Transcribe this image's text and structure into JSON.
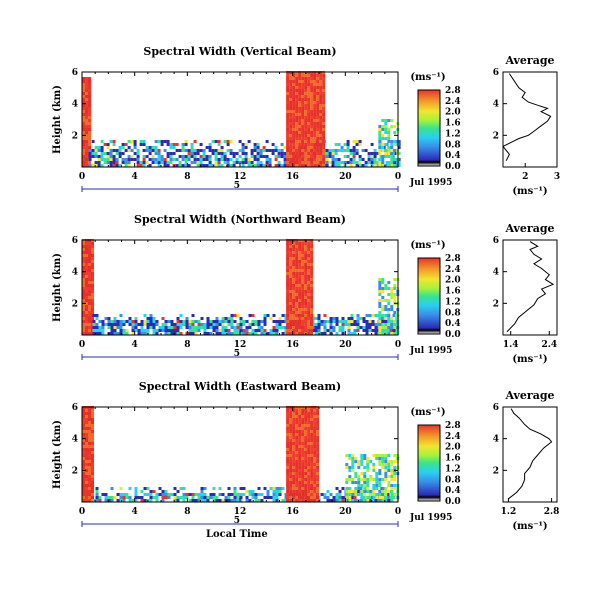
{
  "chart_data": [
    {
      "type": "heatmap",
      "title": "Spectral Width (Vertical Beam)",
      "ylabel": "Height (km)",
      "yticks": [
        "2",
        "4",
        "6"
      ],
      "ylim": [
        0,
        6
      ],
      "xticks": [
        "0",
        "4",
        "8",
        "12",
        "16",
        "20",
        "0"
      ],
      "xlim": [
        0,
        24
      ],
      "day_label": "5",
      "date_label": "Jul 1995",
      "colorbar": {
        "unit": "(ms⁻¹)",
        "ticks": [
          "0.0",
          "0.4",
          "0.8",
          "1.2",
          "1.6",
          "2.0",
          "2.4",
          "2.8"
        ]
      },
      "regions": [
        {
          "x": [
            0,
            0.5
          ],
          "y": [
            0,
            5.5
          ],
          "level": "high"
        },
        {
          "x": [
            0.5,
            24
          ],
          "y": [
            0,
            1.6
          ],
          "level": "low-mid"
        },
        {
          "x": [
            15.5,
            18.3
          ],
          "y": [
            0,
            6
          ],
          "level": "high"
        },
        {
          "x": [
            22.5,
            24
          ],
          "y": [
            0,
            3.0
          ],
          "level": "mid"
        }
      ]
    },
    {
      "type": "heatmap",
      "title": "Spectral Width (Northward Beam)",
      "ylabel": "Height (km)",
      "yticks": [
        "2",
        "4",
        "6"
      ],
      "ylim": [
        0,
        6
      ],
      "xticks": [
        "0",
        "4",
        "8",
        "12",
        "16",
        "20",
        "0"
      ],
      "xlim": [
        0,
        24
      ],
      "day_label": "5",
      "date_label": "Jul 1995",
      "colorbar": {
        "unit": "(ms⁻¹)",
        "ticks": [
          "0.0",
          "0.4",
          "0.8",
          "1.2",
          "1.6",
          "2.0",
          "2.4",
          "2.8"
        ]
      },
      "regions": [
        {
          "x": [
            0,
            0.8
          ],
          "y": [
            0,
            6
          ],
          "level": "high"
        },
        {
          "x": [
            0.8,
            24
          ],
          "y": [
            0,
            1.2
          ],
          "level": "low-mid"
        },
        {
          "x": [
            15.5,
            17.5
          ],
          "y": [
            0,
            6
          ],
          "level": "high"
        },
        {
          "x": [
            22.5,
            24
          ],
          "y": [
            0,
            3.5
          ],
          "level": "mid"
        }
      ]
    },
    {
      "type": "heatmap",
      "title": "Spectral Width (Eastward Beam)",
      "ylabel": "Height (km)",
      "yticks": [
        "2",
        "4",
        "6"
      ],
      "ylim": [
        0,
        6
      ],
      "xticks": [
        "0",
        "4",
        "8",
        "12",
        "16",
        "20",
        "0"
      ],
      "xlim": [
        0,
        24
      ],
      "day_label": "5",
      "date_label": "Jul 1995",
      "xlabel": "Local Time",
      "colorbar": {
        "unit": "(ms⁻¹)",
        "ticks": [
          "0.0",
          "0.4",
          "0.8",
          "1.2",
          "1.6",
          "2.0",
          "2.4",
          "2.8"
        ]
      },
      "regions": [
        {
          "x": [
            0,
            0.8
          ],
          "y": [
            0,
            6
          ],
          "level": "high"
        },
        {
          "x": [
            0.8,
            24
          ],
          "y": [
            0,
            0.8
          ],
          "level": "low-mid"
        },
        {
          "x": [
            15.5,
            17.8
          ],
          "y": [
            0,
            6
          ],
          "level": "high"
        },
        {
          "x": [
            20,
            24
          ],
          "y": [
            0,
            3.0
          ],
          "level": "mid"
        }
      ]
    },
    {
      "type": "line",
      "title": "Average",
      "xlabel": "(ms⁻¹)",
      "xticks": [
        "2",
        "3"
      ],
      "xlim": [
        1.3,
        3.0
      ],
      "yticks": [
        "2",
        "4",
        "6"
      ],
      "ylim": [
        0,
        6
      ],
      "points": [
        [
          1.4,
          0.4
        ],
        [
          1.5,
          0.8
        ],
        [
          1.3,
          1.3
        ],
        [
          1.6,
          1.6
        ],
        [
          1.8,
          1.8
        ],
        [
          2.1,
          2.0
        ],
        [
          2.3,
          2.3
        ],
        [
          2.5,
          2.6
        ],
        [
          2.7,
          2.9
        ],
        [
          2.8,
          3.2
        ],
        [
          2.5,
          3.5
        ],
        [
          2.7,
          3.7
        ],
        [
          2.4,
          3.9
        ],
        [
          2.1,
          4.1
        ],
        [
          1.9,
          4.4
        ],
        [
          2.0,
          4.7
        ],
        [
          1.8,
          5.0
        ],
        [
          1.7,
          5.3
        ],
        [
          1.6,
          5.6
        ],
        [
          1.5,
          5.9
        ]
      ]
    },
    {
      "type": "line",
      "title": "Average",
      "xlabel": "(ms⁻¹)",
      "xticks": [
        "1.4",
        "2.4"
      ],
      "xlim": [
        1.2,
        2.6
      ],
      "yticks": [
        "2",
        "4",
        "6"
      ],
      "ylim": [
        0,
        6
      ],
      "points": [
        [
          1.3,
          0.2
        ],
        [
          1.5,
          0.7
        ],
        [
          1.6,
          1.1
        ],
        [
          1.8,
          1.5
        ],
        [
          2.0,
          1.9
        ],
        [
          2.1,
          2.3
        ],
        [
          2.3,
          2.6
        ],
        [
          2.2,
          2.9
        ],
        [
          2.5,
          3.2
        ],
        [
          2.3,
          3.5
        ],
        [
          2.4,
          3.8
        ],
        [
          2.2,
          4.2
        ],
        [
          2.0,
          4.5
        ],
        [
          2.2,
          4.8
        ],
        [
          2.0,
          5.1
        ],
        [
          1.9,
          5.4
        ],
        [
          2.1,
          5.6
        ],
        [
          1.9,
          5.9
        ]
      ]
    },
    {
      "type": "line",
      "title": "Average",
      "xlabel": "(ms⁻¹)",
      "xticks": [
        "1.2",
        "2.8"
      ],
      "xlim": [
        1.0,
        3.0
      ],
      "yticks": [
        "2",
        "4",
        "6"
      ],
      "ylim": [
        0,
        6
      ],
      "points": [
        [
          1.2,
          0.2
        ],
        [
          1.5,
          0.6
        ],
        [
          1.7,
          1.0
        ],
        [
          1.8,
          1.4
        ],
        [
          1.8,
          1.8
        ],
        [
          2.0,
          2.2
        ],
        [
          2.1,
          2.6
        ],
        [
          2.3,
          3.0
        ],
        [
          2.5,
          3.4
        ],
        [
          2.8,
          3.8
        ],
        [
          2.7,
          4.0
        ],
        [
          2.4,
          4.3
        ],
        [
          2.0,
          4.6
        ],
        [
          1.8,
          4.9
        ],
        [
          1.6,
          5.3
        ],
        [
          1.4,
          5.6
        ],
        [
          1.3,
          5.9
        ]
      ]
    }
  ]
}
